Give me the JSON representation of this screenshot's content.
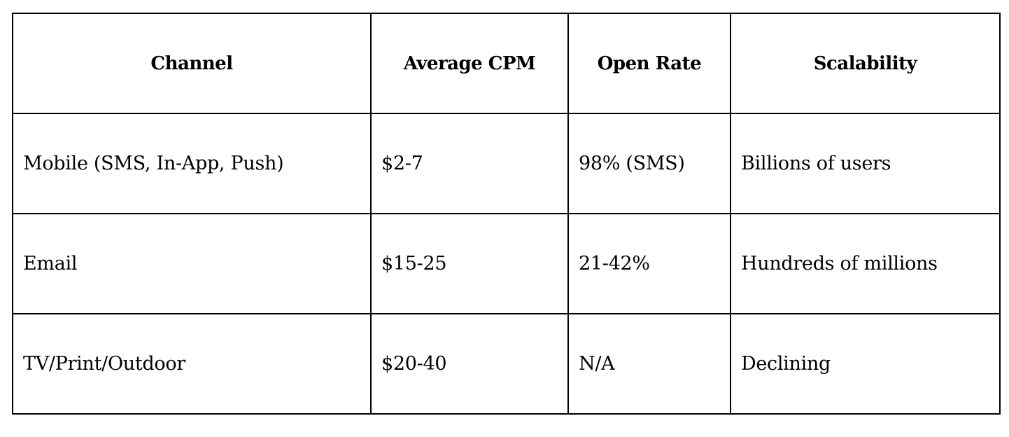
{
  "table": {
    "headers": [
      "Channel",
      "Average CPM",
      "Open Rate",
      "Scalability"
    ],
    "rows": [
      [
        "Mobile (SMS, In-App, Push)",
        "$2-7",
        "98% (SMS)",
        "Billions of users"
      ],
      [
        "Email",
        "$15-25",
        "21-42%",
        "Hundreds of millions"
      ],
      [
        "TV/Print/Outdoor",
        "$20-40",
        "N/A",
        "Declining"
      ]
    ]
  }
}
